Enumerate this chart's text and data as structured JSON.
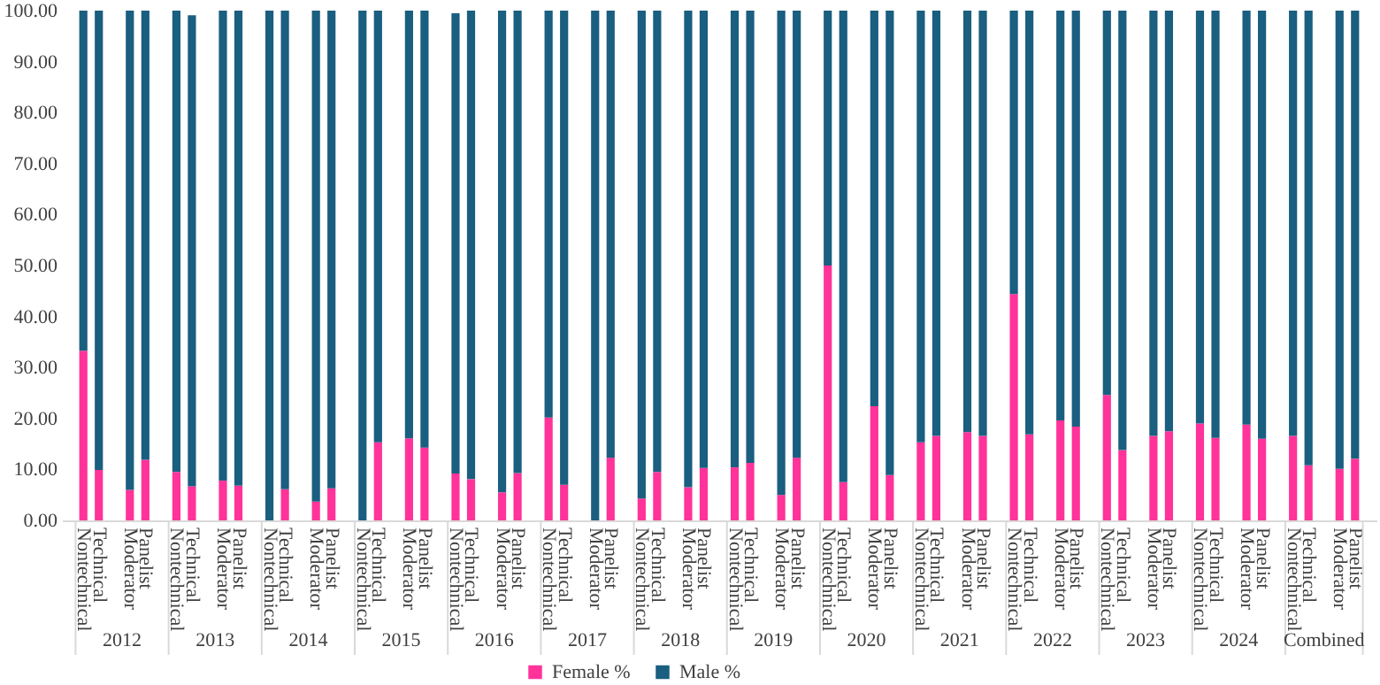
{
  "chart_data": {
    "type": "bar",
    "stacked": true,
    "legend": "bottom",
    "categories": [
      "Nontechnical",
      "Technical",
      null,
      "Moderator",
      "Panelist",
      null,
      "Nontechnical",
      "Technical",
      null,
      "Moderator",
      "Panelist",
      null,
      "Nontechnical",
      "Technical",
      null,
      "Moderator",
      "Panelist",
      null,
      "Nontechnical",
      "Technical",
      null,
      "Moderator",
      "Panelist",
      null,
      "Nontechnical",
      "Technical",
      null,
      "Moderator",
      "Panelist",
      null,
      "Nontechnical",
      "Technical",
      null,
      "Moderator",
      "Panelist",
      null,
      "Nontechnical",
      "Technical",
      null,
      "Moderator",
      "Panelist",
      null,
      "Nontechnical",
      "Technical",
      null,
      "Moderator",
      "Panelist",
      null,
      "Nontechnical",
      "Technical",
      null,
      "Moderator",
      "Panelist",
      null,
      "Nontechnical",
      "Technical",
      null,
      "Moderator",
      "Panelist",
      null,
      "Nontechnical",
      "Technical",
      null,
      "Moderator",
      "Panelist",
      null,
      "Nontechnical",
      "Technical",
      null,
      "Moderator",
      "Panelist",
      null,
      "Nontechnical",
      "Technical",
      null,
      "Moderator",
      "Panelist",
      null,
      "Nontechnical",
      "Technical",
      null,
      "Moderator",
      "Panelist"
    ],
    "series": [
      {
        "name": "Female %",
        "color": "#ff3399",
        "values": [
          33.3,
          9.9,
          null,
          6.0,
          11.9,
          null,
          9.5,
          6.7,
          null,
          7.8,
          6.8,
          null,
          0,
          6.1,
          null,
          3.7,
          6.3,
          null,
          0,
          15.3,
          null,
          16.1,
          14.3,
          null,
          9.2,
          8.1,
          null,
          5.5,
          9.3,
          null,
          20.2,
          7.0,
          null,
          0,
          12.3,
          null,
          4.3,
          9.5,
          null,
          6.5,
          10.3,
          null,
          10.4,
          11.3,
          null,
          5.0,
          12.3,
          null,
          50.0,
          7.5,
          null,
          22.4,
          8.9,
          null,
          15.3,
          16.6,
          null,
          17.3,
          16.6,
          null,
          44.4,
          16.9,
          null,
          19.6,
          18.4,
          null,
          24.6,
          13.8,
          null,
          16.6,
          17.5,
          null,
          19.0,
          16.2,
          null,
          18.8,
          16.0,
          null,
          16.6,
          10.8,
          null,
          10.1,
          12.1
        ]
      },
      {
        "name": "Male %",
        "color": "#1a5e80",
        "values": [
          66.7,
          90.1,
          null,
          94.0,
          88.1,
          null,
          90.5,
          92.4,
          null,
          92.2,
          93.2,
          null,
          100,
          93.9,
          null,
          96.3,
          93.7,
          null,
          100,
          84.7,
          null,
          83.9,
          85.7,
          null,
          90.3,
          91.9,
          null,
          94.5,
          90.7,
          null,
          79.8,
          93.0,
          null,
          100,
          87.7,
          null,
          95.7,
          90.5,
          null,
          93.5,
          89.7,
          null,
          89.6,
          88.7,
          null,
          95.0,
          87.7,
          null,
          50.0,
          92.5,
          null,
          77.6,
          91.1,
          null,
          84.7,
          83.4,
          null,
          82.7,
          83.4,
          null,
          55.6,
          83.1,
          null,
          80.4,
          81.6,
          null,
          75.4,
          86.2,
          null,
          83.4,
          82.5,
          null,
          81.0,
          83.8,
          null,
          81.2,
          84.0,
          null,
          83.4,
          89.2,
          null,
          89.9,
          87.9
        ]
      }
    ],
    "ylim": [
      0,
      100
    ],
    "yticks": [
      {
        "value": 0,
        "label": "0.00"
      },
      {
        "value": 10,
        "label": "10.00"
      },
      {
        "value": 20,
        "label": "20.00"
      },
      {
        "value": 30,
        "label": "30.00"
      },
      {
        "value": 40,
        "label": "40.00"
      },
      {
        "value": 50,
        "label": "50.00"
      },
      {
        "value": 60,
        "label": "60.00"
      },
      {
        "value": 70,
        "label": "70.00"
      },
      {
        "value": 80,
        "label": "80.00"
      },
      {
        "value": 90,
        "label": "90.00"
      },
      {
        "value": 100,
        "label": "100.00"
      }
    ],
    "annotations": [
      "2012",
      "2013",
      "2014",
      "2015",
      "2016",
      "2017",
      "2018",
      "2019",
      "2020",
      "2021",
      "2022",
      "2023",
      "2024",
      "Combined"
    ]
  }
}
